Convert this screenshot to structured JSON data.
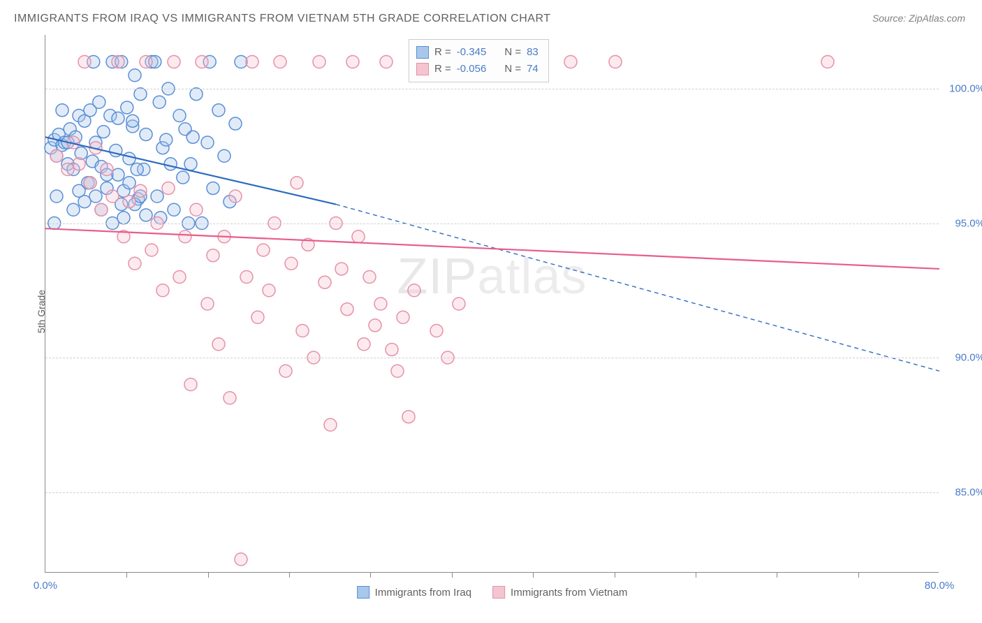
{
  "title": "IMMIGRANTS FROM IRAQ VS IMMIGRANTS FROM VIETNAM 5TH GRADE CORRELATION CHART",
  "source": "Source: ZipAtlas.com",
  "y_axis_label": "5th Grade",
  "watermark_a": "ZIP",
  "watermark_b": "atlas",
  "chart": {
    "type": "scatter",
    "xlim": [
      0,
      80
    ],
    "ylim": [
      82,
      102
    ],
    "x_ticks": [
      0,
      80
    ],
    "x_tick_labels": [
      "0.0%",
      "80.0%"
    ],
    "x_minor_ticks": [
      7.27,
      14.55,
      21.82,
      29.09,
      36.36,
      43.64,
      50.91,
      58.18,
      65.45,
      72.73
    ],
    "y_ticks": [
      85,
      90,
      95,
      100
    ],
    "y_tick_labels": [
      "85.0%",
      "90.0%",
      "95.0%",
      "100.0%"
    ],
    "background_color": "#ffffff",
    "grid_color": "#d0d0d0",
    "marker_radius": 9,
    "marker_stroke_width": 1.5,
    "marker_fill_opacity": 0.35,
    "trend_line_width": 2.2,
    "trend_dash": "6,5"
  },
  "series": [
    {
      "name": "Immigrants from Iraq",
      "color_stroke": "#5a8fd6",
      "color_fill": "#a9c7ea",
      "trend_color": "#2e6bc0",
      "R": "-0.345",
      "N": "83",
      "trend_solid": {
        "x1": 0,
        "y1": 98.2,
        "x2": 26,
        "y2": 95.7
      },
      "trend_dashed": {
        "x1": 26,
        "y1": 95.7,
        "x2": 80,
        "y2": 89.5
      },
      "points": [
        [
          0.5,
          97.8
        ],
        [
          0.8,
          98.1
        ],
        [
          1.0,
          97.5
        ],
        [
          1.2,
          98.3
        ],
        [
          1.5,
          97.9
        ],
        [
          1.7,
          98.0
        ],
        [
          2.0,
          97.2
        ],
        [
          2.2,
          98.5
        ],
        [
          2.5,
          97.0
        ],
        [
          2.7,
          98.2
        ],
        [
          3.0,
          99.0
        ],
        [
          3.2,
          97.6
        ],
        [
          3.5,
          98.8
        ],
        [
          3.8,
          96.5
        ],
        [
          4.0,
          99.2
        ],
        [
          4.2,
          97.3
        ],
        [
          4.5,
          98.0
        ],
        [
          4.8,
          99.5
        ],
        [
          5.0,
          97.1
        ],
        [
          5.2,
          98.4
        ],
        [
          5.5,
          96.8
        ],
        [
          5.8,
          99.0
        ],
        [
          6.0,
          101.0
        ],
        [
          6.3,
          97.7
        ],
        [
          6.5,
          98.9
        ],
        [
          6.8,
          101.0
        ],
        [
          7.0,
          96.2
        ],
        [
          7.3,
          99.3
        ],
        [
          7.5,
          97.4
        ],
        [
          7.8,
          98.6
        ],
        [
          8.0,
          100.5
        ],
        [
          8.3,
          95.9
        ],
        [
          8.5,
          99.8
        ],
        [
          8.8,
          97.0
        ],
        [
          9.0,
          98.3
        ],
        [
          9.5,
          101.0
        ],
        [
          10.0,
          96.0
        ],
        [
          10.2,
          99.5
        ],
        [
          10.5,
          97.8
        ],
        [
          10.8,
          98.1
        ],
        [
          11.0,
          100.0
        ],
        [
          11.5,
          95.5
        ],
        [
          12.0,
          99.0
        ],
        [
          12.3,
          96.7
        ],
        [
          12.5,
          98.5
        ],
        [
          13.0,
          97.2
        ],
        [
          13.5,
          99.8
        ],
        [
          14.0,
          95.0
        ],
        [
          14.5,
          98.0
        ],
        [
          14.7,
          101.0
        ],
        [
          15.0,
          96.3
        ],
        [
          15.5,
          99.2
        ],
        [
          16.0,
          97.5
        ],
        [
          16.5,
          95.8
        ],
        [
          17.0,
          98.7
        ],
        [
          17.5,
          101.0
        ],
        [
          4.5,
          96.0
        ],
        [
          5.0,
          95.5
        ],
        [
          5.5,
          96.3
        ],
        [
          6.0,
          95.0
        ],
        [
          6.5,
          96.8
        ],
        [
          7.0,
          95.2
        ],
        [
          7.5,
          96.5
        ],
        [
          8.0,
          95.7
        ],
        [
          8.5,
          96.0
        ],
        [
          9.0,
          95.3
        ],
        [
          3.0,
          96.2
        ],
        [
          3.5,
          95.8
        ],
        [
          4.0,
          96.5
        ],
        [
          2.5,
          95.5
        ],
        [
          2.0,
          98.0
        ],
        [
          1.5,
          99.2
        ],
        [
          1.0,
          96.0
        ],
        [
          0.8,
          95.0
        ],
        [
          11.2,
          97.2
        ],
        [
          12.8,
          95.0
        ],
        [
          13.2,
          98.2
        ],
        [
          9.8,
          101.0
        ],
        [
          10.3,
          95.2
        ],
        [
          8.2,
          97.0
        ],
        [
          7.8,
          98.8
        ],
        [
          6.8,
          95.7
        ],
        [
          4.3,
          101.0
        ]
      ]
    },
    {
      "name": "Immigrants from Vietnam",
      "color_stroke": "#e591a8",
      "color_fill": "#f5c4d1",
      "trend_color": "#e85d8a",
      "R": "-0.056",
      "N": "74",
      "trend_solid": {
        "x1": 0,
        "y1": 94.8,
        "x2": 80,
        "y2": 93.3
      },
      "trend_dashed": null,
      "points": [
        [
          1.0,
          97.5
        ],
        [
          2.0,
          97.0
        ],
        [
          2.5,
          98.0
        ],
        [
          3.0,
          97.2
        ],
        [
          3.5,
          101.0
        ],
        [
          4.0,
          96.5
        ],
        [
          4.5,
          97.8
        ],
        [
          5.0,
          95.5
        ],
        [
          5.5,
          97.0
        ],
        [
          6.0,
          96.0
        ],
        [
          6.5,
          101.0
        ],
        [
          7.0,
          94.5
        ],
        [
          7.5,
          95.8
        ],
        [
          8.0,
          93.5
        ],
        [
          8.5,
          96.2
        ],
        [
          9.0,
          101.0
        ],
        [
          9.5,
          94.0
        ],
        [
          10.0,
          95.0
        ],
        [
          10.5,
          92.5
        ],
        [
          11.0,
          96.3
        ],
        [
          11.5,
          101.0
        ],
        [
          12.0,
          93.0
        ],
        [
          12.5,
          94.5
        ],
        [
          13.0,
          89.0
        ],
        [
          13.5,
          95.5
        ],
        [
          14.0,
          101.0
        ],
        [
          14.5,
          92.0
        ],
        [
          15.0,
          93.8
        ],
        [
          15.5,
          90.5
        ],
        [
          16.0,
          94.5
        ],
        [
          16.5,
          88.5
        ],
        [
          17.0,
          96.0
        ],
        [
          17.5,
          82.5
        ],
        [
          18.0,
          93.0
        ],
        [
          18.5,
          101.0
        ],
        [
          19.0,
          91.5
        ],
        [
          19.5,
          94.0
        ],
        [
          20.0,
          92.5
        ],
        [
          20.5,
          95.0
        ],
        [
          21.0,
          101.0
        ],
        [
          21.5,
          89.5
        ],
        [
          22.0,
          93.5
        ],
        [
          22.5,
          96.5
        ],
        [
          23.0,
          91.0
        ],
        [
          23.5,
          94.2
        ],
        [
          24.0,
          90.0
        ],
        [
          24.5,
          101.0
        ],
        [
          25.0,
          92.8
        ],
        [
          25.5,
          87.5
        ],
        [
          26.0,
          95.0
        ],
        [
          26.5,
          93.3
        ],
        [
          27.0,
          91.8
        ],
        [
          27.5,
          101.0
        ],
        [
          28.0,
          94.5
        ],
        [
          28.5,
          90.5
        ],
        [
          29.0,
          93.0
        ],
        [
          29.5,
          91.2
        ],
        [
          30.0,
          92.0
        ],
        [
          30.5,
          101.0
        ],
        [
          31.0,
          90.3
        ],
        [
          31.5,
          89.5
        ],
        [
          32.0,
          91.5
        ],
        [
          32.5,
          87.8
        ],
        [
          33.0,
          92.5
        ],
        [
          34.0,
          101.0
        ],
        [
          35.0,
          91.0
        ],
        [
          36.0,
          90.0
        ],
        [
          37.0,
          92.0
        ],
        [
          38.0,
          101.0
        ],
        [
          41.0,
          101.0
        ],
        [
          44.0,
          101.0
        ],
        [
          47.0,
          101.0
        ],
        [
          51.0,
          101.0
        ],
        [
          70.0,
          101.0
        ]
      ]
    }
  ],
  "legend": {
    "r_label": "R =",
    "n_label": "N ="
  }
}
